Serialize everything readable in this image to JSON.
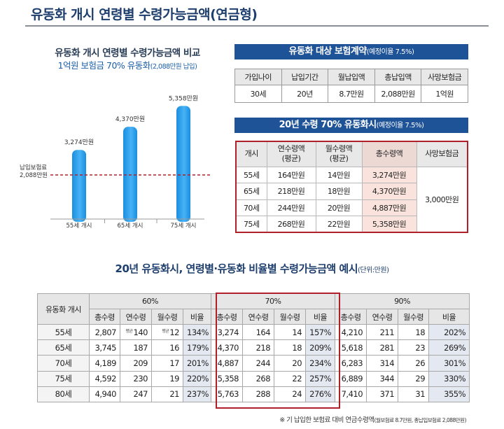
{
  "page": {
    "title": "유동화 개시 연령별 수령가능금액(연금형)"
  },
  "chart_data": {
    "type": "bar",
    "title": "유동화 개시 연령별 수령가능금액 비교",
    "subtitle_main": "1억원 보험금 70% 유동화",
    "subtitle_note": "(2,088만원 납입)",
    "categories": [
      "55세 개시",
      "65세 개시",
      "75세 개시"
    ],
    "values": [
      3274,
      4370,
      5358
    ],
    "value_labels": [
      "3,274만원",
      "4,370만원",
      "5,358만원"
    ],
    "reference_line": {
      "value": 2088,
      "label_line1": "납입보험료",
      "label_line2": "2,088만원"
    },
    "ylim": [
      0,
      5800
    ],
    "colors": {
      "bar": "#1b8ee0",
      "bar_light": "#47b2f5",
      "reference": "#b0202a"
    }
  },
  "table1": {
    "header": "유동화 대상 보험계약",
    "header_note": "(예정이율 7.5%)",
    "columns": [
      "가입나이",
      "납입기간",
      "월납입액",
      "총납입액",
      "사망보험금"
    ],
    "row": [
      "30세",
      "20년",
      "8.7만원",
      "2,088만원",
      "1억원"
    ]
  },
  "table2": {
    "header": "20년 수령 70% 유동화시",
    "header_note": "(예정이율 7.5%)",
    "col_age": "개시",
    "col_annual": [
      "연수령액",
      "(평균)"
    ],
    "col_monthly": [
      "월수령액",
      "(평균)"
    ],
    "col_total": "총수령액",
    "col_death": "사망보험금",
    "death_benefit": "3,000만원",
    "rows": [
      {
        "age": "55세",
        "annual": "164만원",
        "monthly": "14만원",
        "total": "3,274만원"
      },
      {
        "age": "65세",
        "annual": "218만원",
        "monthly": "18만원",
        "total": "4,370만원"
      },
      {
        "age": "70세",
        "annual": "244만원",
        "monthly": "20만원",
        "total": "4,887만원"
      },
      {
        "age": "75세",
        "annual": "268만원",
        "monthly": "22만원",
        "total": "5,358만원"
      }
    ]
  },
  "table3": {
    "title": "20년 유동화시, 연령별·유동화 비율별 수령가능금액 예시",
    "title_unit": "(단위:만원)",
    "age_header": "유동화 개시",
    "groups": [
      "60%",
      "70%",
      "90%"
    ],
    "subheaders": [
      "총수령",
      "연수령",
      "월수령",
      "비율"
    ],
    "avg_tag": "평균",
    "rows": [
      {
        "age": "55세",
        "v60": [
          "2,807",
          "140",
          "12",
          "134%"
        ],
        "v70": [
          "3,274",
          "164",
          "14",
          "157%"
        ],
        "v90": [
          "4,210",
          "211",
          "18",
          "202%"
        ]
      },
      {
        "age": "65세",
        "v60": [
          "3,745",
          "187",
          "16",
          "179%"
        ],
        "v70": [
          "4,370",
          "218",
          "18",
          "209%"
        ],
        "v90": [
          "5,618",
          "281",
          "23",
          "269%"
        ]
      },
      {
        "age": "70세",
        "v60": [
          "4,189",
          "209",
          "17",
          "201%"
        ],
        "v70": [
          "4,887",
          "244",
          "20",
          "234%"
        ],
        "v90": [
          "6,283",
          "314",
          "26",
          "301%"
        ]
      },
      {
        "age": "75세",
        "v60": [
          "4,592",
          "230",
          "19",
          "220%"
        ],
        "v70": [
          "5,358",
          "268",
          "22",
          "257%"
        ],
        "v90": [
          "6,889",
          "344",
          "29",
          "330%"
        ]
      },
      {
        "age": "80세",
        "v60": [
          "4,940",
          "247",
          "21",
          "237%"
        ],
        "v70": [
          "5,763",
          "288",
          "24",
          "276%"
        ],
        "v90": [
          "7,410",
          "371",
          "31",
          "355%"
        ]
      }
    ],
    "footnote": "※ 기 납입한 보험료 대비 연금수령액",
    "footnote_detail": "(월보험료 8.7만원, 총납입보험료 2,088만원)"
  },
  "colors": {
    "title": "#1e3f6e",
    "header_bar": "#1e5398",
    "highlight_frame": "#b0202a",
    "highlight_cell": "#f9e3dc",
    "ratio_cell": "#e4e9f1"
  }
}
